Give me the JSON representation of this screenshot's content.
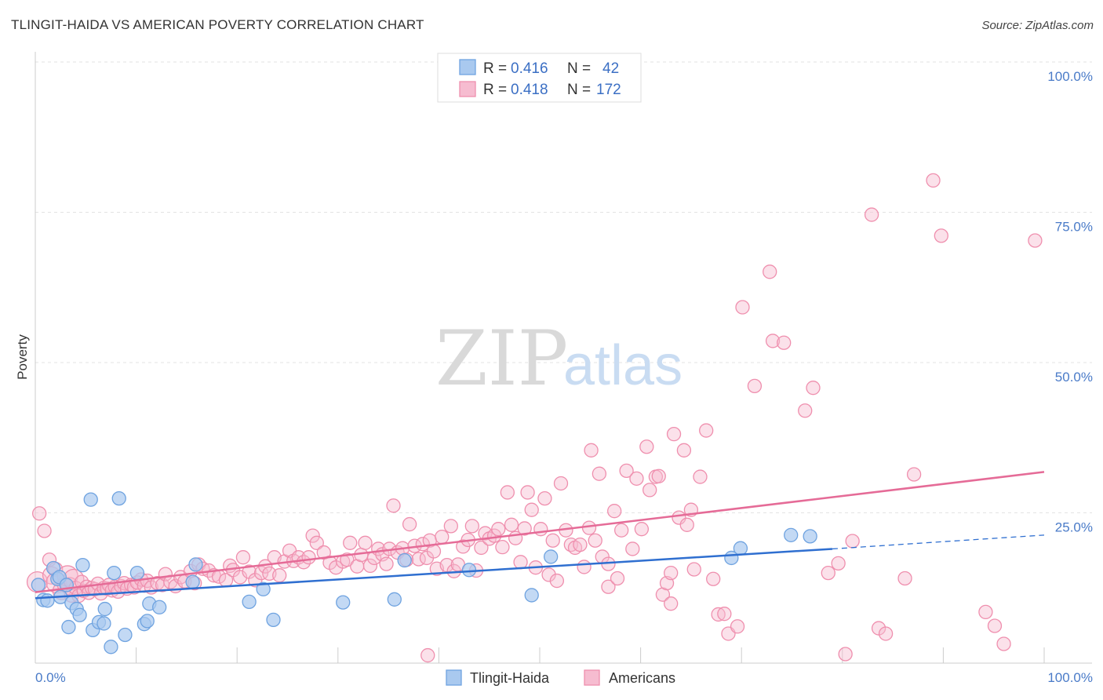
{
  "title": "TLINGIT-HAIDA VS AMERICAN POVERTY CORRELATION CHART",
  "source": "Source: ZipAtlas.com",
  "watermark": {
    "zip": "ZIP",
    "atlas": "atlas"
  },
  "chart_data": {
    "type": "scatter",
    "xlabel": "",
    "ylabel": "Poverty",
    "xlim": [
      0,
      100
    ],
    "ylim": [
      0,
      100
    ],
    "x_ticks": [
      {
        "value": 0,
        "label": "0.0%"
      },
      {
        "value": 100,
        "label": "100.0%"
      }
    ],
    "y_ticks": [
      {
        "value": 25,
        "label": "25.0%"
      },
      {
        "value": 50,
        "label": "50.0%"
      },
      {
        "value": 75,
        "label": "75.0%"
      },
      {
        "value": 100,
        "label": "100.0%"
      }
    ],
    "grid": true,
    "legend_position": "top-center",
    "series": [
      {
        "name": "Tlingit-Haida",
        "color": "#6fa3e0",
        "fill": "#a9c9ef",
        "line_color": "#2f6fd0",
        "R": "0.416",
        "N": "42",
        "trend": {
          "x0": 0,
          "y0": 10.8,
          "x1": 79,
          "y1": 19.0,
          "dash_to_x": 100,
          "dash_to_y": 21.3
        },
        "points": [
          [
            0.3,
            13.0
          ],
          [
            0.8,
            10.5
          ],
          [
            1.2,
            10.4
          ],
          [
            1.8,
            15.8
          ],
          [
            2.2,
            14.0
          ],
          [
            2.4,
            14.3
          ],
          [
            2.5,
            11.0
          ],
          [
            3.1,
            13.0
          ],
          [
            3.3,
            6.0
          ],
          [
            3.6,
            10.0
          ],
          [
            4.1,
            9.0
          ],
          [
            4.4,
            8.0
          ],
          [
            4.7,
            16.3
          ],
          [
            5.5,
            27.2
          ],
          [
            5.7,
            5.5
          ],
          [
            6.3,
            6.8
          ],
          [
            6.8,
            6.6
          ],
          [
            6.9,
            9.0
          ],
          [
            7.5,
            2.7
          ],
          [
            7.8,
            15.0
          ],
          [
            8.3,
            27.4
          ],
          [
            8.9,
            4.7
          ],
          [
            10.1,
            15.0
          ],
          [
            10.8,
            6.5
          ],
          [
            11.1,
            7.0
          ],
          [
            11.3,
            9.9
          ],
          [
            12.3,
            9.3
          ],
          [
            15.6,
            13.5
          ],
          [
            15.9,
            16.4
          ],
          [
            21.2,
            10.2
          ],
          [
            22.6,
            12.3
          ],
          [
            23.6,
            7.2
          ],
          [
            30.5,
            10.1
          ],
          [
            35.6,
            10.6
          ],
          [
            36.6,
            17.1
          ],
          [
            43.0,
            15.5
          ],
          [
            49.2,
            11.3
          ],
          [
            51.1,
            17.7
          ],
          [
            69.0,
            17.5
          ],
          [
            69.9,
            19.1
          ],
          [
            74.9,
            21.3
          ],
          [
            76.8,
            21.1
          ]
        ]
      },
      {
        "name": "Americans",
        "color": "#ef8fae",
        "fill": "#f6bcd0",
        "line_color": "#e56b97",
        "R": "0.418",
        "N": "172",
        "trend": {
          "x0": 0,
          "y0": 11.8,
          "x1": 100,
          "y1": 31.8
        },
        "points": [
          [
            0.2,
            13.5
          ],
          [
            0.4,
            24.9
          ],
          [
            0.9,
            22.0
          ],
          [
            1.4,
            17.2
          ],
          [
            1.6,
            14.6
          ],
          [
            2.0,
            15.6
          ],
          [
            2.1,
            13.4
          ],
          [
            2.6,
            12.0
          ],
          [
            2.9,
            13.0
          ],
          [
            3.2,
            14.5
          ],
          [
            3.4,
            12.8
          ],
          [
            3.6,
            11.3
          ],
          [
            3.8,
            13.9
          ],
          [
            4.0,
            12.5
          ],
          [
            4.3,
            11.2
          ],
          [
            4.6,
            13.5
          ],
          [
            4.8,
            12.0
          ],
          [
            5.1,
            12.7
          ],
          [
            5.3,
            11.7
          ],
          [
            5.6,
            12.5
          ],
          [
            5.9,
            12.3
          ],
          [
            6.2,
            13.2
          ],
          [
            6.5,
            11.6
          ],
          [
            6.8,
            12.5
          ],
          [
            7.1,
            12.4
          ],
          [
            7.3,
            13.0
          ],
          [
            7.6,
            12.1
          ],
          [
            7.9,
            12.7
          ],
          [
            8.2,
            11.9
          ],
          [
            8.5,
            12.8
          ],
          [
            8.8,
            13.3
          ],
          [
            9.1,
            12.4
          ],
          [
            9.5,
            13.0
          ],
          [
            9.8,
            12.6
          ],
          [
            10.1,
            13.4
          ],
          [
            10.5,
            13.9
          ],
          [
            10.8,
            12.9
          ],
          [
            11.1,
            13.7
          ],
          [
            11.5,
            12.6
          ],
          [
            12.1,
            13.3
          ],
          [
            12.6,
            13.0
          ],
          [
            12.9,
            14.8
          ],
          [
            13.4,
            13.5
          ],
          [
            13.9,
            12.8
          ],
          [
            14.4,
            14.3
          ],
          [
            14.8,
            13.6
          ],
          [
            15.4,
            15.3
          ],
          [
            15.8,
            13.3
          ],
          [
            16.2,
            16.4
          ],
          [
            16.6,
            15.7
          ],
          [
            17.2,
            15.4
          ],
          [
            17.7,
            14.6
          ],
          [
            18.2,
            14.4
          ],
          [
            18.9,
            13.8
          ],
          [
            19.3,
            16.2
          ],
          [
            19.6,
            15.5
          ],
          [
            20.3,
            14.3
          ],
          [
            20.6,
            17.6
          ],
          [
            21.2,
            15.2
          ],
          [
            21.8,
            13.8
          ],
          [
            22.4,
            15.0
          ],
          [
            22.8,
            16.1
          ],
          [
            23.2,
            14.9
          ],
          [
            23.7,
            17.6
          ],
          [
            24.2,
            14.6
          ],
          [
            24.7,
            16.9
          ],
          [
            25.2,
            18.7
          ],
          [
            25.6,
            17.0
          ],
          [
            26.1,
            17.6
          ],
          [
            26.6,
            16.8
          ],
          [
            27.1,
            17.6
          ],
          [
            27.5,
            21.2
          ],
          [
            27.9,
            20.0
          ],
          [
            28.6,
            18.4
          ],
          [
            29.2,
            16.7
          ],
          [
            29.8,
            15.9
          ],
          [
            30.5,
            16.9
          ],
          [
            30.9,
            17.2
          ],
          [
            31.2,
            20.0
          ],
          [
            31.9,
            16.1
          ],
          [
            32.3,
            18.0
          ],
          [
            32.7,
            20.0
          ],
          [
            33.2,
            16.2
          ],
          [
            33.6,
            17.5
          ],
          [
            34.0,
            19.0
          ],
          [
            34.4,
            18.1
          ],
          [
            34.8,
            16.5
          ],
          [
            35.1,
            19.0
          ],
          [
            35.5,
            26.2
          ],
          [
            35.9,
            18.4
          ],
          [
            36.4,
            19.1
          ],
          [
            36.8,
            17.2
          ],
          [
            37.1,
            23.1
          ],
          [
            37.6,
            19.5
          ],
          [
            38.0,
            17.3
          ],
          [
            38.4,
            19.8
          ],
          [
            38.8,
            17.5
          ],
          [
            39.1,
            20.4
          ],
          [
            39.5,
            18.6
          ],
          [
            39.8,
            15.7
          ],
          [
            40.3,
            21.0
          ],
          [
            40.8,
            16.3
          ],
          [
            41.2,
            22.8
          ],
          [
            41.5,
            15.3
          ],
          [
            41.9,
            16.4
          ],
          [
            42.4,
            19.4
          ],
          [
            42.9,
            20.5
          ],
          [
            43.3,
            22.8
          ],
          [
            43.7,
            15.4
          ],
          [
            44.2,
            19.2
          ],
          [
            44.6,
            21.6
          ],
          [
            45.0,
            20.7
          ],
          [
            45.5,
            21.2
          ],
          [
            45.9,
            22.3
          ],
          [
            46.3,
            19.3
          ],
          [
            46.8,
            28.4
          ],
          [
            47.2,
            23.0
          ],
          [
            47.6,
            20.8
          ],
          [
            48.1,
            16.8
          ],
          [
            48.5,
            22.4
          ],
          [
            48.8,
            28.4
          ],
          [
            49.2,
            25.5
          ],
          [
            49.6,
            15.9
          ],
          [
            50.1,
            22.3
          ],
          [
            50.5,
            27.4
          ],
          [
            50.9,
            14.7
          ],
          [
            51.3,
            20.4
          ],
          [
            51.7,
            13.7
          ],
          [
            52.1,
            29.9
          ],
          [
            52.6,
            22.1
          ],
          [
            53.1,
            19.7
          ],
          [
            53.5,
            19.2
          ],
          [
            54.0,
            19.7
          ],
          [
            54.4,
            16.0
          ],
          [
            54.9,
            22.5
          ],
          [
            55.1,
            35.4
          ],
          [
            55.5,
            20.4
          ],
          [
            55.9,
            31.5
          ],
          [
            56.2,
            17.7
          ],
          [
            56.8,
            12.7
          ],
          [
            57.4,
            25.3
          ],
          [
            57.7,
            14.1
          ],
          [
            58.1,
            22.1
          ],
          [
            58.6,
            32.0
          ],
          [
            59.2,
            19.0
          ],
          [
            59.6,
            30.7
          ],
          [
            60.1,
            22.3
          ],
          [
            60.6,
            36.0
          ],
          [
            60.9,
            28.8
          ],
          [
            61.5,
            31.0
          ],
          [
            62.2,
            11.4
          ],
          [
            62.6,
            13.3
          ],
          [
            63.0,
            15.0
          ],
          [
            63.3,
            38.1
          ],
          [
            63.8,
            24.2
          ],
          [
            64.3,
            35.4
          ],
          [
            64.6,
            23.0
          ],
          [
            65.0,
            25.5
          ],
          [
            65.3,
            15.6
          ],
          [
            65.9,
            31.0
          ],
          [
            66.5,
            38.7
          ],
          [
            67.2,
            14.0
          ],
          [
            67.7,
            8.1
          ],
          [
            68.3,
            8.2
          ],
          [
            68.7,
            4.9
          ],
          [
            69.6,
            6.1
          ],
          [
            70.1,
            59.2
          ],
          [
            71.3,
            46.1
          ],
          [
            72.8,
            65.1
          ],
          [
            73.1,
            53.6
          ],
          [
            74.2,
            53.3
          ],
          [
            76.3,
            42.0
          ],
          [
            77.1,
            45.8
          ],
          [
            78.6,
            15.0
          ],
          [
            79.6,
            16.6
          ],
          [
            80.3,
            1.5
          ],
          [
            81.0,
            20.3
          ],
          [
            82.9,
            74.6
          ],
          [
            83.6,
            5.8
          ],
          [
            84.3,
            4.9
          ],
          [
            86.2,
            14.1
          ],
          [
            87.1,
            31.4
          ],
          [
            89.0,
            80.3
          ],
          [
            89.8,
            71.1
          ],
          [
            94.2,
            8.5
          ],
          [
            95.1,
            6.2
          ],
          [
            96.0,
            3.2
          ],
          [
            99.1,
            70.3
          ],
          [
            38.9,
            1.3
          ],
          [
            56.8,
            16.5
          ],
          [
            61.8,
            31.1
          ],
          [
            63.0,
            9.9
          ]
        ]
      }
    ]
  },
  "legend": {
    "r_label": "R = ",
    "n_label": "N = "
  }
}
